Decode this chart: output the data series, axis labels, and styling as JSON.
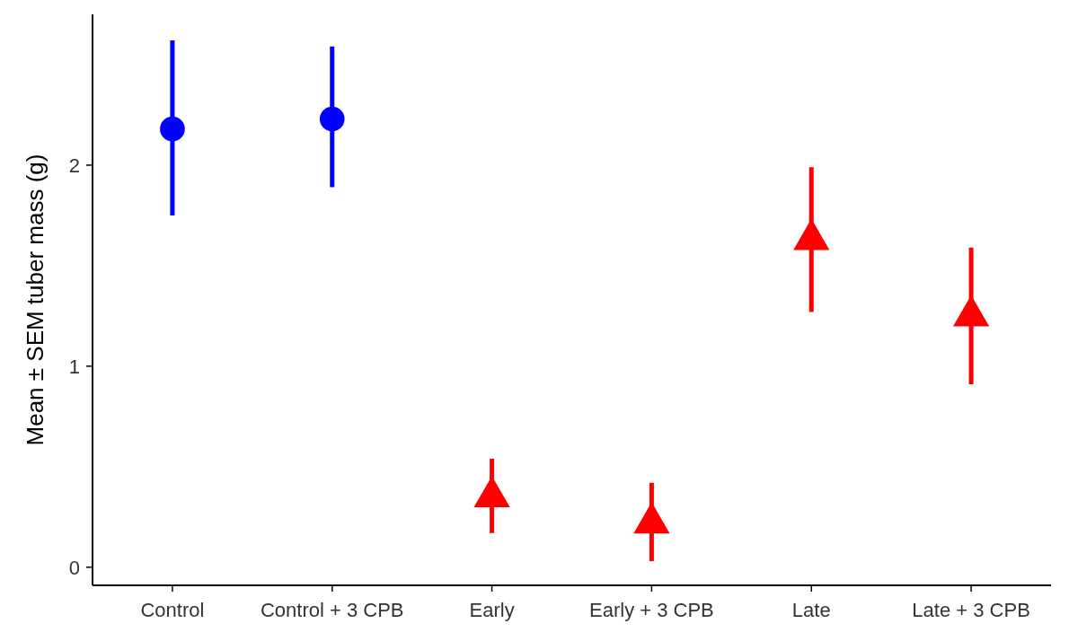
{
  "chart_data": {
    "type": "scatter",
    "ylabel": "Mean ± SEM tuber mass (g)",
    "categories": [
      "Control",
      "Control + 3 CPB",
      "Early",
      "Early + 3 CPB",
      "Late",
      "Late + 3 CPB"
    ],
    "ylim": [
      -0.09,
      2.75
    ],
    "yticks": [
      0,
      1,
      2
    ],
    "grid": false,
    "series": [
      {
        "color": "#0000ff",
        "marker": "circle",
        "x": [
          "Control",
          "Control + 3 CPB"
        ],
        "values": [
          2.18,
          2.23
        ],
        "errors": [
          [
            1.75,
            2.62
          ],
          [
            1.89,
            2.59
          ]
        ]
      },
      {
        "color": "#ff0000",
        "marker": "triangle",
        "x": [
          "Early",
          "Early + 3 CPB",
          "Late",
          "Late + 3 CPB"
        ],
        "values": [
          0.35,
          0.22,
          1.63,
          1.25
        ],
        "errors": [
          [
            0.17,
            0.54
          ],
          [
            0.03,
            0.42
          ],
          [
            1.27,
            1.99
          ],
          [
            0.91,
            1.59
          ]
        ]
      }
    ]
  }
}
